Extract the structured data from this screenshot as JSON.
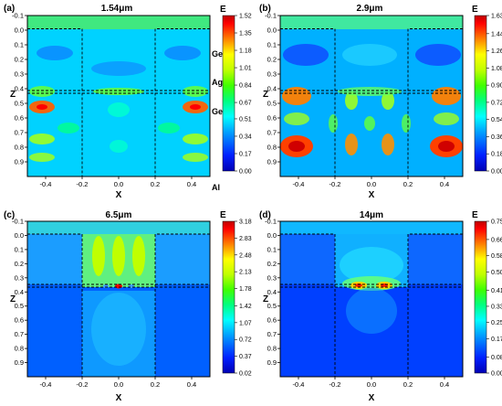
{
  "chart_data": [
    {
      "id": "a",
      "type": "heatmap",
      "panel_label": "(a)",
      "title": "1.54μm",
      "xlabel": "X",
      "ylabel": "Z",
      "colorbar_title": "E",
      "xlim": [
        -0.5,
        0.5
      ],
      "ylim": [
        -0.1,
        1.0
      ],
      "x_ticks": [
        "-0.4",
        "-0.2",
        "0.0",
        "0.2",
        "0.4"
      ],
      "y_ticks": [
        "-0.1",
        "0.0",
        "0.1",
        "0.2",
        "0.3",
        "0.4",
        "0.5",
        "0.6",
        "0.7",
        "0.8",
        "0.9"
      ],
      "colorbar_range": [
        0.0,
        1.52
      ],
      "colorbar_ticks": [
        "1.52",
        "1.35",
        "1.18",
        "1.01",
        "0.84",
        "0.67",
        "0.51",
        "0.34",
        "0.17",
        "0.00"
      ],
      "material_labels": [
        "Ge",
        "Ag",
        "Ge",
        "Al"
      ]
    },
    {
      "id": "b",
      "type": "heatmap",
      "panel_label": "(b)",
      "title": "2.9μm",
      "xlabel": "X",
      "ylabel": "Z",
      "colorbar_title": "E",
      "xlim": [
        -0.5,
        0.5
      ],
      "ylim": [
        -0.1,
        1.0
      ],
      "x_ticks": [
        "-0.4",
        "-0.2",
        "0.0",
        "0.2",
        "0.4"
      ],
      "y_ticks": [
        "-0.1",
        "0.0",
        "0.1",
        "0.2",
        "0.3",
        "0.4",
        "0.5",
        "0.6",
        "0.7",
        "0.8",
        "0.9"
      ],
      "colorbar_range": [
        0.0,
        1.63
      ],
      "colorbar_ticks": [
        "1.63",
        "1.44",
        "1.26",
        "1.08",
        "0.90",
        "0.72",
        "0.54",
        "0.36",
        "0.18",
        "0.00"
      ]
    },
    {
      "id": "c",
      "type": "heatmap",
      "panel_label": "(c)",
      "title": "6.5μm",
      "xlabel": "X",
      "ylabel": "Z",
      "colorbar_title": "E",
      "xlim": [
        -0.5,
        0.5
      ],
      "ylim": [
        -0.1,
        1.0
      ],
      "x_ticks": [
        "-0.4",
        "-0.2",
        "0.0",
        "0.2",
        "0.4"
      ],
      "y_ticks": [
        "-0.1",
        "0.0",
        "0.1",
        "0.2",
        "0.3",
        "0.4",
        "0.5",
        "0.6",
        "0.7",
        "0.8",
        "0.9"
      ],
      "colorbar_range": [
        0.02,
        3.18
      ],
      "colorbar_ticks": [
        "3.18",
        "2.83",
        "2.48",
        "2.13",
        "1.78",
        "1.42",
        "1.07",
        "0.72",
        "0.37",
        "0.02"
      ]
    },
    {
      "id": "d",
      "type": "heatmap",
      "panel_label": "(d)",
      "title": "14μm",
      "xlabel": "X",
      "ylabel": "Z",
      "colorbar_title": "E",
      "xlim": [
        -0.5,
        0.5
      ],
      "ylim": [
        -0.1,
        1.0
      ],
      "x_ticks": [
        "-0.4",
        "-0.2",
        "0.0",
        "0.2",
        "0.4"
      ],
      "y_ticks": [
        "-0.1",
        "0.0",
        "0.1",
        "0.2",
        "0.3",
        "0.4",
        "0.5",
        "0.6",
        "0.7",
        "0.8",
        "0.9"
      ],
      "colorbar_range": [
        0.0,
        0.75
      ],
      "colorbar_ticks": [
        "0.75",
        "0.66",
        "0.58",
        "0.50",
        "0.41",
        "0.33",
        "0.25",
        "0.17",
        "0.08",
        "0.00"
      ]
    }
  ],
  "structure": {
    "ge_ag_interface_z": 0.345,
    "ridge_x_edges": [
      -0.22,
      0.22
    ],
    "top_surface_z": 0.0
  },
  "colors": {
    "colormap": [
      "#0000b4",
      "#0020ff",
      "#00a0ff",
      "#00ffff",
      "#00ff80",
      "#40ff00",
      "#c0ff00",
      "#ffff00",
      "#ff8000",
      "#ff0000",
      "#c00000"
    ],
    "dashed_line": "#000000"
  }
}
